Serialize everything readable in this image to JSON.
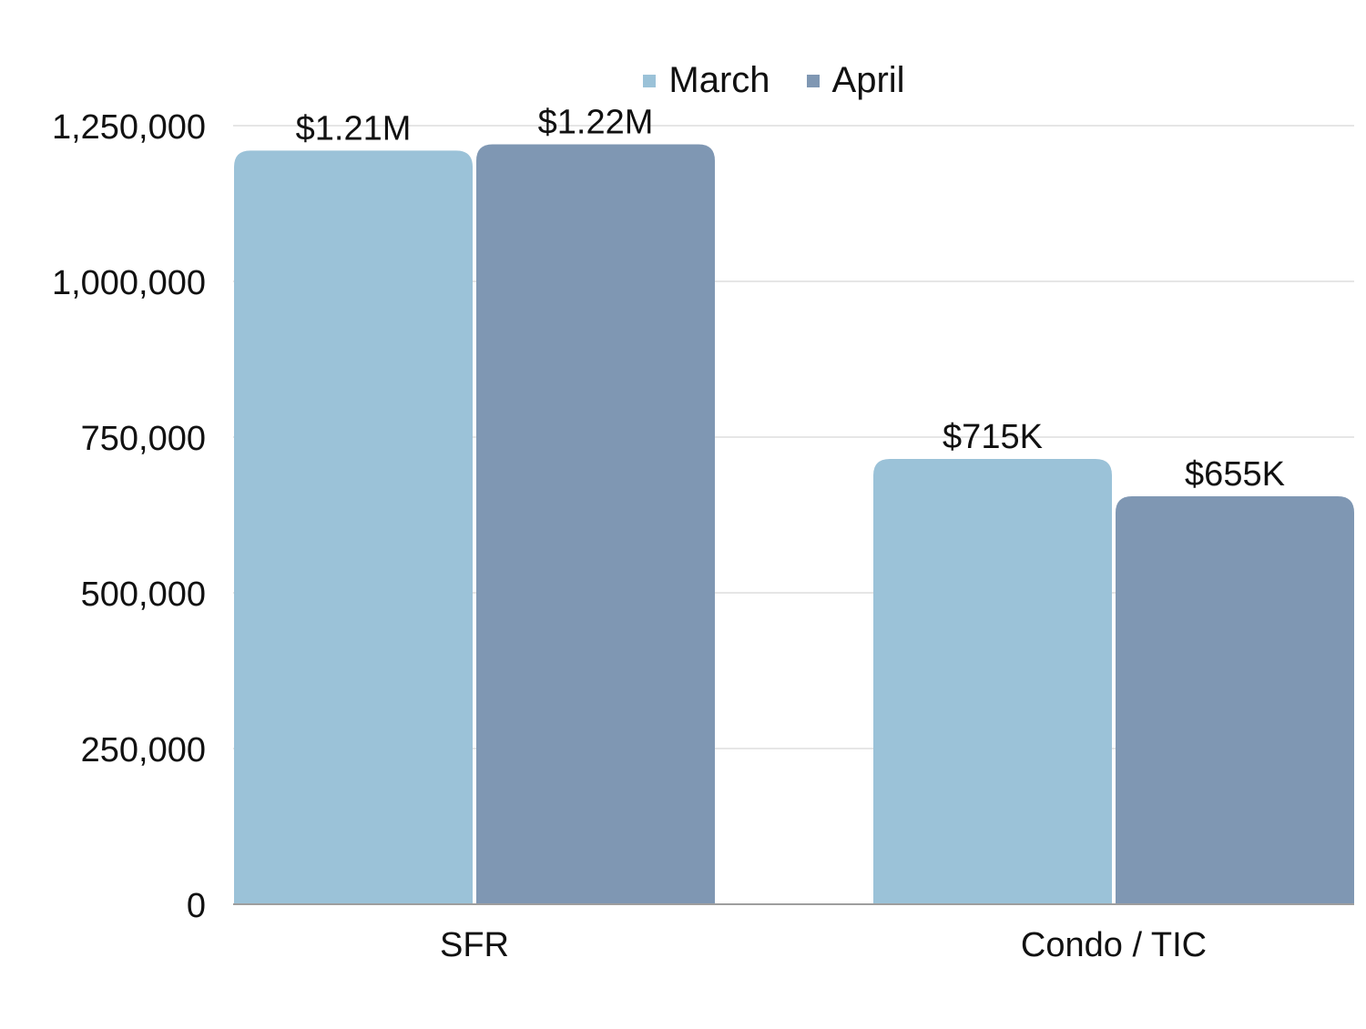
{
  "chart_data": {
    "type": "bar",
    "categories": [
      "SFR",
      "Condo / TIC"
    ],
    "series": [
      {
        "name": "March",
        "color": "#9bc2d8",
        "values": [
          1210000,
          715000
        ],
        "labels": [
          "$1.21M",
          "$715K"
        ]
      },
      {
        "name": "April",
        "color": "#7f97b3",
        "values": [
          1220000,
          655000
        ],
        "labels": [
          "$1.22M",
          "$655K"
        ]
      }
    ],
    "y_ticks": [
      0,
      250000,
      500000,
      750000,
      1000000,
      1250000
    ],
    "y_tick_labels": [
      "0",
      "250,000",
      "500,000",
      "750,000",
      "1,000,000",
      "1,250,000"
    ],
    "ylim": [
      0,
      1250000
    ],
    "title": "",
    "xlabel": "",
    "ylabel": "",
    "grid": true,
    "legend_position": "top"
  }
}
